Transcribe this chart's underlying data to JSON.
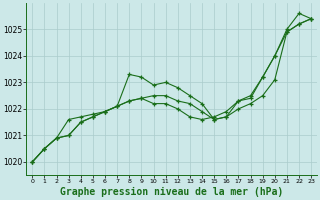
{
  "background_color": "#cce8e8",
  "grid_color": "#aacccc",
  "line_color": "#1a6e1a",
  "marker_color": "#1a6e1a",
  "xlabel": "Graphe pression niveau de la mer (hPa)",
  "xlabel_fontsize": 7,
  "xlim": [
    -0.5,
    23.5
  ],
  "ylim": [
    1019.5,
    1026.0
  ],
  "yticks": [
    1020,
    1021,
    1022,
    1023,
    1024,
    1025
  ],
  "xticks": [
    0,
    1,
    2,
    3,
    4,
    5,
    6,
    7,
    8,
    9,
    10,
    11,
    12,
    13,
    14,
    15,
    16,
    17,
    18,
    19,
    20,
    21,
    22,
    23
  ],
  "series": [
    [
      1020.0,
      1020.5,
      1020.9,
      1021.0,
      1021.5,
      1021.7,
      1021.9,
      1022.1,
      1023.3,
      1023.2,
      1022.9,
      1023.0,
      1022.8,
      1022.5,
      1022.2,
      1021.6,
      1021.7,
      1022.3,
      1022.5,
      1023.2,
      1024.0,
      1025.0,
      1025.6,
      1025.4
    ],
    [
      1020.0,
      1020.5,
      1020.9,
      1021.0,
      1021.5,
      1021.7,
      1021.9,
      1022.1,
      1022.3,
      1022.4,
      1022.5,
      1022.5,
      1022.3,
      1022.2,
      1021.9,
      1021.6,
      1021.7,
      1022.0,
      1022.2,
      1022.5,
      1023.1,
      1024.9,
      1025.2,
      1025.4
    ],
    [
      1020.0,
      1020.5,
      1020.9,
      1021.6,
      1021.7,
      1021.8,
      1021.9,
      1022.1,
      1022.3,
      1022.4,
      1022.2,
      1022.2,
      1022.0,
      1021.7,
      1021.6,
      1021.7,
      1021.9,
      1022.3,
      1022.4,
      1023.2,
      1024.0,
      1024.9,
      1025.2,
      1025.4
    ]
  ]
}
